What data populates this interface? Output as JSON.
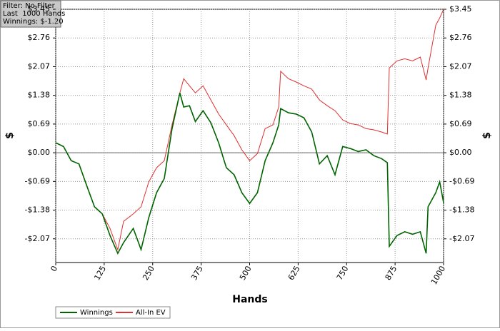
{
  "chart_data": {
    "type": "line",
    "annotations": [
      "Filter: No Filter",
      "Last  1000 Hands",
      "Winnings: $-1.20"
    ],
    "x_label": "Hands",
    "y_label": "$",
    "y2_label": "$",
    "x": [
      0,
      20,
      40,
      60,
      80,
      100,
      120,
      140,
      160,
      175,
      200,
      220,
      240,
      260,
      280,
      300,
      320,
      330,
      345,
      360,
      380,
      400,
      420,
      440,
      460,
      480,
      500,
      520,
      540,
      560,
      575,
      580,
      600,
      620,
      640,
      660,
      680,
      700,
      720,
      740,
      760,
      780,
      800,
      820,
      840,
      855,
      860,
      880,
      900,
      920,
      940,
      955,
      960,
      980,
      990,
      1000
    ],
    "series": [
      {
        "name": "Winnings",
        "color": "#006400",
        "values": [
          0.24,
          0.15,
          -0.19,
          -0.27,
          -0.79,
          -1.3,
          -1.47,
          -1.99,
          -2.42,
          -2.16,
          -1.82,
          -2.33,
          -1.56,
          -0.96,
          -0.62,
          0.58,
          1.44,
          1.1,
          1.13,
          0.75,
          1.01,
          0.72,
          0.24,
          -0.36,
          -0.53,
          -0.96,
          -1.22,
          -0.96,
          -0.19,
          0.24,
          0.67,
          1.06,
          0.96,
          0.93,
          0.84,
          0.5,
          -0.27,
          -0.07,
          -0.53,
          0.15,
          0.1,
          0.03,
          0.07,
          -0.07,
          -0.14,
          -0.24,
          -2.25,
          -1.99,
          -1.9,
          -1.96,
          -1.9,
          -2.42,
          -1.3,
          -0.96,
          -0.7,
          -1.2
        ]
      },
      {
        "name": "All-In EV",
        "color": "#e03030",
        "values": [
          0.24,
          0.15,
          -0.19,
          -0.27,
          -0.79,
          -1.3,
          -1.47,
          -1.82,
          -2.33,
          -1.65,
          -1.47,
          -1.3,
          -0.7,
          -0.36,
          -0.19,
          0.67,
          1.44,
          1.78,
          1.61,
          1.44,
          1.61,
          1.27,
          0.93,
          0.67,
          0.41,
          0.07,
          -0.19,
          -0.02,
          0.58,
          0.67,
          1.1,
          1.96,
          1.78,
          1.7,
          1.61,
          1.53,
          1.27,
          1.13,
          1.01,
          0.79,
          0.7,
          0.67,
          0.58,
          0.55,
          0.5,
          0.45,
          2.04,
          2.21,
          2.26,
          2.21,
          2.3,
          1.75,
          2.04,
          3.07,
          3.24,
          3.45
        ]
      }
    ],
    "xlim": [
      0,
      1000
    ],
    "xticks": [
      0,
      125,
      250,
      375,
      500,
      625,
      750,
      875,
      1000
    ],
    "ylim": [
      -2.64,
      3.45
    ],
    "yticks": [
      {
        "value": -2.07,
        "label": "-$2.07"
      },
      {
        "value": -1.38,
        "label": "-$1.38"
      },
      {
        "value": -0.69,
        "label": "-$0.69"
      },
      {
        "value": 0,
        "label": "$0.00"
      },
      {
        "value": 0.69,
        "label": "$0.69"
      },
      {
        "value": 1.38,
        "label": "$1.38"
      },
      {
        "value": 2.07,
        "label": "$2.07"
      },
      {
        "value": 2.76,
        "label": "$2.76"
      },
      {
        "value": 3.45,
        "label": "$3.45"
      }
    ],
    "grid": true,
    "zero_line": true,
    "legend": "bottom-left"
  }
}
